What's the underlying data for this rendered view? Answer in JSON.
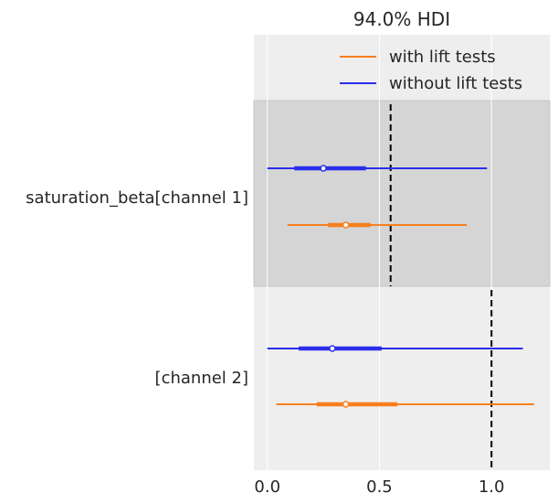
{
  "chart_data": {
    "type": "forest",
    "title": "94.0% HDI",
    "xlim": [
      -0.06,
      1.26
    ],
    "x_ticks": [
      "0.0",
      "0.5",
      "1.0"
    ],
    "x_tick_values": [
      0.0,
      0.5,
      1.0
    ],
    "grid": true,
    "legend_position": "top-right",
    "legend": [
      {
        "label": "with lift tests",
        "color": "#f77f1e"
      },
      {
        "label": "without lift tests",
        "color": "#2a2eec"
      }
    ],
    "groups": [
      {
        "label": "saturation_beta[channel 1]",
        "highlighted": true,
        "reference_line": 0.55,
        "series": [
          {
            "name": "without lift tests",
            "color": "#2a2eec",
            "hdi": [
              0.0,
              0.98
            ],
            "iqr": [
              0.12,
              0.44
            ],
            "point": 0.25
          },
          {
            "name": "with lift tests",
            "color": "#f77f1e",
            "hdi": [
              0.09,
              0.89
            ],
            "iqr": [
              0.27,
              0.46
            ],
            "point": 0.35
          }
        ]
      },
      {
        "label": "[channel 2]",
        "highlighted": false,
        "reference_line": 1.0,
        "series": [
          {
            "name": "without lift tests",
            "color": "#2a2eec",
            "hdi": [
              0.0,
              1.14
            ],
            "iqr": [
              0.14,
              0.51
            ],
            "point": 0.29
          },
          {
            "name": "with lift tests",
            "color": "#f77f1e",
            "hdi": [
              0.04,
              1.19
            ],
            "iqr": [
              0.22,
              0.58
            ],
            "point": 0.35
          }
        ]
      }
    ]
  }
}
